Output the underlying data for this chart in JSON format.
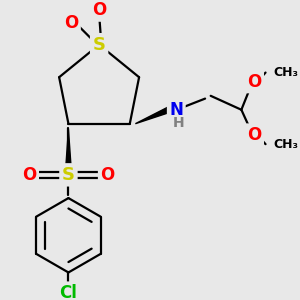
{
  "background_color": "#e8e8e8",
  "figsize": [
    3.0,
    3.0
  ],
  "dpi": 100,
  "atom_colors": {
    "S": "#cccc00",
    "O": "#ff0000",
    "N": "#0000ee",
    "H": "#808080",
    "Cl": "#00bb00",
    "C": "#000000"
  },
  "label_fontsize": 12,
  "small_fontsize": 9,
  "lw": 1.6
}
